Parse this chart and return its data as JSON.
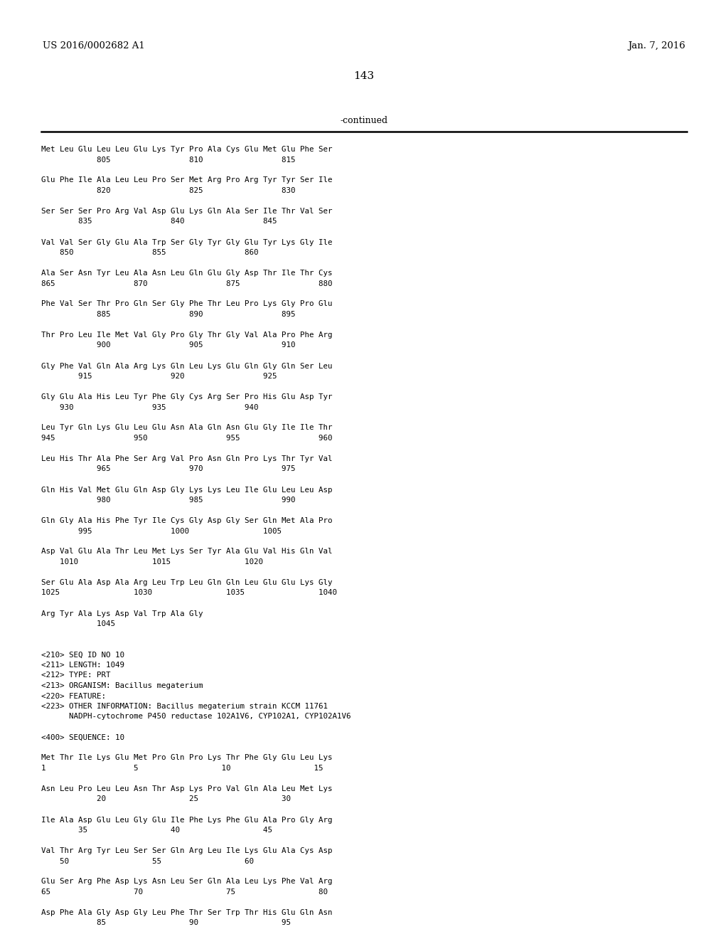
{
  "header_left": "US 2016/0002682 A1",
  "header_right": "Jan. 7, 2016",
  "page_number": "143",
  "continued_label": "-continued",
  "background_color": "#ffffff",
  "text_color": "#000000",
  "content_lines": [
    "Met Leu Glu Leu Leu Glu Lys Tyr Pro Ala Cys Glu Met Glu Phe Ser",
    "            805                 810                 815",
    "",
    "Glu Phe Ile Ala Leu Leu Pro Ser Met Arg Pro Arg Tyr Tyr Ser Ile",
    "            820                 825                 830",
    "",
    "Ser Ser Ser Pro Arg Val Asp Glu Lys Gln Ala Ser Ile Thr Val Ser",
    "        835                 840                 845",
    "",
    "Val Val Ser Gly Glu Ala Trp Ser Gly Tyr Gly Glu Tyr Lys Gly Ile",
    "    850                 855                 860",
    "",
    "Ala Ser Asn Tyr Leu Ala Asn Leu Gln Glu Gly Asp Thr Ile Thr Cys",
    "865                 870                 875                 880",
    "",
    "Phe Val Ser Thr Pro Gln Ser Gly Phe Thr Leu Pro Lys Gly Pro Glu",
    "            885                 890                 895",
    "",
    "Thr Pro Leu Ile Met Val Gly Pro Gly Thr Gly Val Ala Pro Phe Arg",
    "            900                 905                 910",
    "",
    "Gly Phe Val Gln Ala Arg Lys Gln Leu Lys Glu Gln Gly Gln Ser Leu",
    "        915                 920                 925",
    "",
    "Gly Glu Ala His Leu Tyr Phe Gly Cys Arg Ser Pro His Glu Asp Tyr",
    "    930                 935                 940",
    "",
    "Leu Tyr Gln Lys Glu Leu Glu Asn Ala Gln Asn Glu Gly Ile Ile Thr",
    "945                 950                 955                 960",
    "",
    "Leu His Thr Ala Phe Ser Arg Val Pro Asn Gln Pro Lys Thr Tyr Val",
    "            965                 970                 975",
    "",
    "Gln His Val Met Glu Gln Asp Gly Lys Lys Leu Ile Glu Leu Leu Asp",
    "            980                 985                 990",
    "",
    "Gln Gly Ala His Phe Tyr Ile Cys Gly Asp Gly Ser Gln Met Ala Pro",
    "        995                 1000                1005",
    "",
    "Asp Val Glu Ala Thr Leu Met Lys Ser Tyr Ala Glu Val His Gln Val",
    "    1010                1015                1020",
    "",
    "Ser Glu Ala Asp Ala Arg Leu Trp Leu Gln Gln Leu Glu Glu Lys Gly",
    "1025                1030                1035                1040",
    "",
    "Arg Tyr Ala Lys Asp Val Trp Ala Gly",
    "            1045",
    "",
    "",
    "<210> SEQ ID NO 10",
    "<211> LENGTH: 1049",
    "<212> TYPE: PRT",
    "<213> ORGANISM: Bacillus megaterium",
    "<220> FEATURE:",
    "<223> OTHER INFORMATION: Bacillus megaterium strain KCCM 11761",
    "      NADPH-cytochrome P450 reductase 102A1V6, CYP102A1, CYP102A1V6",
    "",
    "<400> SEQUENCE: 10",
    "",
    "Met Thr Ile Lys Glu Met Pro Gln Pro Lys Thr Phe Gly Glu Leu Lys",
    "1                   5                  10                  15",
    "",
    "Asn Leu Pro Leu Leu Asn Thr Asp Lys Pro Val Gln Ala Leu Met Lys",
    "            20                  25                  30",
    "",
    "Ile Ala Asp Glu Leu Gly Glu Ile Phe Lys Phe Glu Ala Pro Gly Arg",
    "        35                  40                  45",
    "",
    "Val Thr Arg Tyr Leu Ser Ser Gln Arg Leu Ile Lys Glu Ala Cys Asp",
    "    50                  55                  60",
    "",
    "Glu Ser Arg Phe Asp Lys Asn Leu Ser Gln Ala Leu Lys Phe Val Arg",
    "65                  70                  75                  80",
    "",
    "Asp Phe Ala Gly Asp Gly Leu Phe Thr Ser Trp Thr His Glu Gln Asn",
    "            85                  90                  95"
  ]
}
